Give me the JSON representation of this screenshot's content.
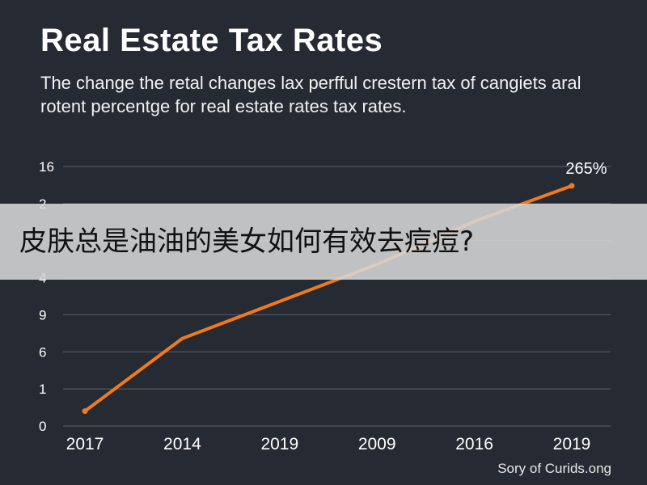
{
  "chart_data": {
    "type": "line",
    "title": "Real Estate Tax Rates",
    "subtitle": "The change the retal changes lax perfful crestern tax of cangiets aral rotent percentge for real estate rates tax rates.",
    "categories": [
      "2017",
      "2014",
      "2019",
      "2009",
      "2016",
      "2019"
    ],
    "y_tick_labels": [
      "16",
      "2",
      "",
      "4",
      "9",
      "6",
      "1",
      "0"
    ],
    "series": [
      {
        "values": [
          1,
          5.9,
          8.4,
          10.9,
          13.8,
          16.2
        ]
      }
    ],
    "ylim": [
      0,
      17.5
    ],
    "grid": true,
    "annotations": [
      {
        "text": "265%",
        "category_index": 5
      }
    ],
    "line_color": "#f07a1e"
  },
  "source": "Sory of Curids.ong",
  "overlay_banner": {
    "text": "皮肤总是油油的美女如何有效去痘痘?"
  }
}
